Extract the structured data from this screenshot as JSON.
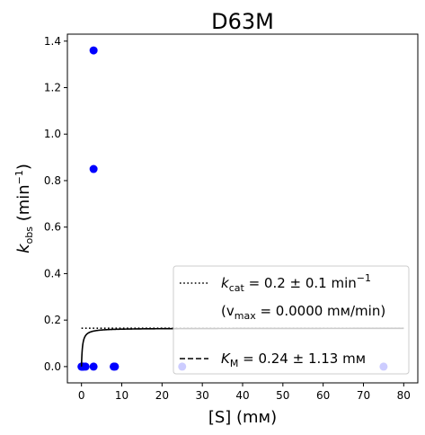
{
  "chart_data": {
    "type": "scatter",
    "title": "D63M",
    "xlabel": {
      "main": "[S] (mм)"
    },
    "ylabel": {
      "k": "k",
      "sub": "obs",
      "rest": " (min",
      "sup": "−1",
      "close": ")"
    },
    "xlim": [
      -3.5,
      83.5
    ],
    "ylim": [
      -0.07,
      1.43
    ],
    "xticks": [
      0,
      10,
      20,
      30,
      40,
      50,
      60,
      70,
      80
    ],
    "xtick_labels": [
      "0",
      "10",
      "20",
      "30",
      "40",
      "50",
      "60",
      "70",
      "80"
    ],
    "yticks": [
      0.0,
      0.2,
      0.4,
      0.6,
      0.8,
      1.0,
      1.2,
      1.4
    ],
    "ytick_labels": [
      "0.0",
      "0.2",
      "0.4",
      "0.6",
      "0.8",
      "1.0",
      "1.2",
      "1.4"
    ],
    "grid": false,
    "legend_position": "lower-right",
    "colors": {
      "points": "#0000ff",
      "fit": "#000000"
    },
    "series": [
      {
        "kind": "points",
        "x": [
          0,
          0.1,
          0.3,
          0.5,
          1,
          3,
          3,
          3,
          8,
          8.3,
          25,
          75
        ],
        "y": [
          0,
          0,
          0,
          0,
          0,
          1.36,
          0.85,
          0,
          0,
          0,
          0,
          0
        ]
      },
      {
        "kind": "fit-curve",
        "style": "solid",
        "vmax": 0.165,
        "km": 0.24,
        "x_range": [
          0,
          80
        ]
      },
      {
        "kind": "kcat-line",
        "style": "dotted",
        "y": 0.165,
        "x_range": [
          0,
          80
        ]
      }
    ],
    "legend": {
      "kcat": {
        "k": "k",
        "sub": "cat",
        "rest": " = 0.2 ± 0.1 min",
        "sup": "−1"
      },
      "vmax": {
        "open": "(v",
        "sub": "max",
        "rest": " = 0.0000 mм/min)"
      },
      "km": {
        "k": "K",
        "sub": "M",
        "rest": " = 0.24 ± 1.13 mм"
      }
    }
  }
}
